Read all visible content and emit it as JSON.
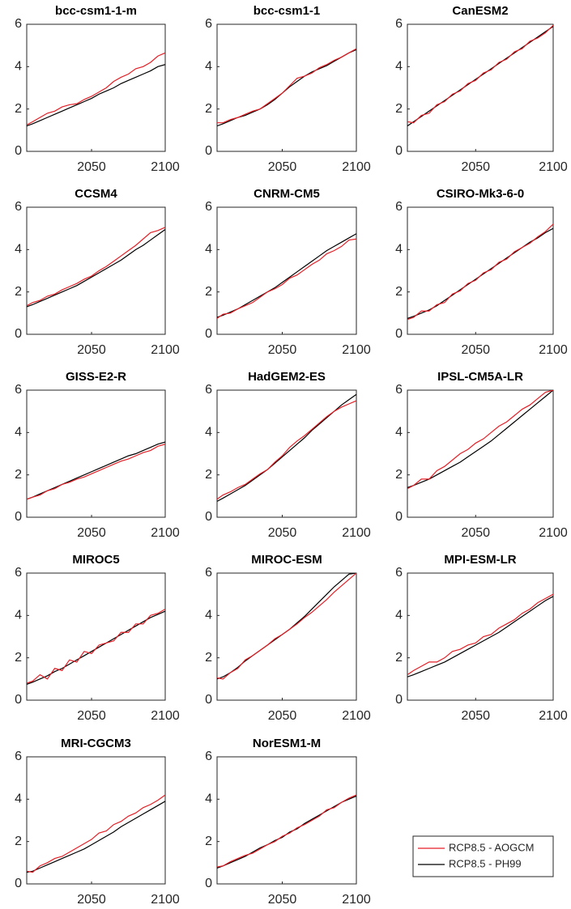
{
  "chart_data": {
    "type": "line",
    "x": [
      2006,
      2010,
      2015,
      2020,
      2025,
      2030,
      2035,
      2040,
      2045,
      2050,
      2055,
      2060,
      2065,
      2070,
      2075,
      2080,
      2085,
      2090,
      2095,
      2100
    ],
    "xlim": [
      2006,
      2100
    ],
    "xticks": [
      2050,
      2100
    ],
    "ylim": [
      0,
      6
    ],
    "yticks": [
      0,
      2,
      4,
      6
    ],
    "legend": [
      {
        "name": "RCP8.5 - AOGCM",
        "color": "#e41f26"
      },
      {
        "name": "RCP8.5 - PH99",
        "color": "#000000"
      }
    ],
    "panels": [
      {
        "title": "bcc-csm1-1-m",
        "series": [
          {
            "values": [
              1.25,
              1.4,
              1.6,
              1.8,
              1.9,
              2.1,
              2.2,
              2.25,
              2.45,
              2.6,
              2.8,
              3.0,
              3.3,
              3.5,
              3.65,
              3.9,
              4.0,
              4.2,
              4.5,
              4.65
            ]
          },
          {
            "values": [
              1.2,
              1.3,
              1.45,
              1.6,
              1.75,
              1.9,
              2.05,
              2.2,
              2.35,
              2.5,
              2.7,
              2.85,
              3.0,
              3.2,
              3.35,
              3.5,
              3.65,
              3.8,
              4.0,
              4.1
            ]
          }
        ]
      },
      {
        "title": "bcc-csm1-1",
        "series": [
          {
            "values": [
              1.35,
              1.35,
              1.5,
              1.6,
              1.75,
              1.9,
              2.0,
              2.25,
              2.5,
              2.75,
              3.1,
              3.45,
              3.55,
              3.7,
              3.95,
              4.1,
              4.3,
              4.45,
              4.65,
              4.85
            ]
          },
          {
            "values": [
              1.2,
              1.3,
              1.45,
              1.6,
              1.7,
              1.85,
              2.0,
              2.2,
              2.45,
              2.75,
              3.05,
              3.3,
              3.55,
              3.75,
              3.9,
              4.05,
              4.25,
              4.45,
              4.65,
              4.8
            ]
          }
        ]
      },
      {
        "title": "CanESM2",
        "series": [
          {
            "values": [
              1.4,
              1.35,
              1.7,
              1.8,
              2.2,
              2.35,
              2.7,
              2.85,
              3.2,
              3.35,
              3.7,
              3.85,
              4.2,
              4.35,
              4.7,
              4.85,
              5.2,
              5.35,
              5.6,
              5.95
            ]
          },
          {
            "values": [
              1.2,
              1.4,
              1.65,
              1.9,
              2.15,
              2.4,
              2.65,
              2.9,
              3.15,
              3.4,
              3.65,
              3.9,
              4.15,
              4.4,
              4.65,
              4.9,
              5.15,
              5.4,
              5.65,
              5.9
            ]
          }
        ]
      },
      {
        "title": "CCSM4",
        "series": [
          {
            "values": [
              1.35,
              1.5,
              1.6,
              1.8,
              1.9,
              2.1,
              2.25,
              2.4,
              2.6,
              2.75,
              3.0,
              3.2,
              3.45,
              3.7,
              3.95,
              4.2,
              4.5,
              4.8,
              4.9,
              5.05
            ]
          },
          {
            "values": [
              1.3,
              1.4,
              1.55,
              1.7,
              1.85,
              2.0,
              2.15,
              2.3,
              2.5,
              2.7,
              2.9,
              3.1,
              3.3,
              3.5,
              3.75,
              4.0,
              4.2,
              4.45,
              4.7,
              4.95
            ]
          }
        ]
      },
      {
        "title": "CNRM-CM5",
        "series": [
          {
            "values": [
              0.75,
              0.95,
              1.0,
              1.2,
              1.35,
              1.5,
              1.75,
              2.0,
              2.15,
              2.35,
              2.65,
              2.8,
              3.05,
              3.3,
              3.5,
              3.8,
              3.95,
              4.15,
              4.45,
              4.5
            ]
          },
          {
            "values": [
              0.8,
              0.9,
              1.05,
              1.2,
              1.4,
              1.6,
              1.8,
              2.0,
              2.2,
              2.45,
              2.7,
              2.95,
              3.2,
              3.45,
              3.7,
              3.95,
              4.15,
              4.35,
              4.55,
              4.75
            ]
          }
        ]
      },
      {
        "title": "CSIRO-Mk3-6-0",
        "series": [
          {
            "values": [
              0.7,
              0.8,
              1.1,
              1.1,
              1.4,
              1.5,
              1.9,
              2.05,
              2.4,
              2.55,
              2.9,
              3.05,
              3.4,
              3.55,
              3.9,
              4.1,
              4.3,
              4.6,
              4.85,
              5.2
            ]
          },
          {
            "values": [
              0.75,
              0.85,
              1.0,
              1.15,
              1.35,
              1.6,
              1.85,
              2.1,
              2.35,
              2.6,
              2.85,
              3.1,
              3.35,
              3.6,
              3.85,
              4.1,
              4.35,
              4.55,
              4.8,
              5.0
            ]
          }
        ]
      },
      {
        "title": "GISS-E2-R",
        "series": [
          {
            "values": [
              0.85,
              0.95,
              1.05,
              1.25,
              1.35,
              1.55,
              1.65,
              1.8,
              1.9,
              2.05,
              2.2,
              2.35,
              2.5,
              2.65,
              2.75,
              2.9,
              3.05,
              3.15,
              3.35,
              3.45
            ]
          },
          {
            "values": [
              0.85,
              0.95,
              1.1,
              1.25,
              1.4,
              1.55,
              1.7,
              1.85,
              2.0,
              2.15,
              2.3,
              2.45,
              2.6,
              2.75,
              2.9,
              3.0,
              3.15,
              3.3,
              3.45,
              3.55
            ]
          }
        ]
      },
      {
        "title": "HadGEM2-ES",
        "series": [
          {
            "values": [
              0.85,
              1.05,
              1.2,
              1.4,
              1.55,
              1.8,
              2.05,
              2.25,
              2.6,
              2.9,
              3.3,
              3.6,
              3.85,
              4.15,
              4.45,
              4.75,
              5.0,
              5.2,
              5.35,
              5.5
            ]
          },
          {
            "values": [
              0.75,
              0.9,
              1.1,
              1.3,
              1.5,
              1.75,
              2.0,
              2.25,
              2.55,
              2.85,
              3.15,
              3.45,
              3.75,
              4.1,
              4.4,
              4.7,
              5.0,
              5.3,
              5.55,
              5.8
            ]
          }
        ]
      },
      {
        "title": "IPSL-CM5A-LR",
        "series": [
          {
            "values": [
              1.35,
              1.5,
              1.8,
              1.8,
              2.2,
              2.4,
              2.7,
              3.0,
              3.2,
              3.5,
              3.7,
              4.0,
              4.3,
              4.5,
              4.8,
              5.1,
              5.3,
              5.6,
              5.9,
              6.0
            ]
          },
          {
            "values": [
              1.4,
              1.5,
              1.65,
              1.8,
              2.0,
              2.2,
              2.4,
              2.6,
              2.85,
              3.1,
              3.35,
              3.6,
              3.9,
              4.2,
              4.5,
              4.8,
              5.1,
              5.4,
              5.7,
              6.0
            ]
          }
        ]
      },
      {
        "title": "MIROC5",
        "series": [
          {
            "values": [
              0.8,
              0.9,
              1.2,
              1.0,
              1.5,
              1.4,
              1.9,
              1.8,
              2.3,
              2.2,
              2.6,
              2.7,
              2.8,
              3.2,
              3.2,
              3.6,
              3.6,
              4.0,
              4.1,
              4.3
            ]
          },
          {
            "values": [
              0.75,
              0.85,
              1.0,
              1.15,
              1.35,
              1.5,
              1.7,
              1.9,
              2.1,
              2.3,
              2.5,
              2.7,
              2.9,
              3.1,
              3.3,
              3.5,
              3.7,
              3.9,
              4.05,
              4.2
            ]
          }
        ]
      },
      {
        "title": "MIROC-ESM",
        "series": [
          {
            "values": [
              1.05,
              1.0,
              1.3,
              1.5,
              1.9,
              2.1,
              2.35,
              2.6,
              2.9,
              3.1,
              3.35,
              3.6,
              3.9,
              4.15,
              4.45,
              4.75,
              5.1,
              5.4,
              5.7,
              6.0
            ]
          },
          {
            "values": [
              1.0,
              1.1,
              1.3,
              1.55,
              1.85,
              2.1,
              2.35,
              2.6,
              2.85,
              3.1,
              3.35,
              3.65,
              3.95,
              4.3,
              4.65,
              5.0,
              5.35,
              5.65,
              5.95,
              6.0
            ]
          }
        ]
      },
      {
        "title": "MPI-ESM-LR",
        "series": [
          {
            "values": [
              1.2,
              1.4,
              1.6,
              1.8,
              1.8,
              2.0,
              2.3,
              2.4,
              2.6,
              2.7,
              3.0,
              3.1,
              3.4,
              3.6,
              3.8,
              4.1,
              4.3,
              4.6,
              4.8,
              5.0
            ]
          },
          {
            "values": [
              1.1,
              1.2,
              1.35,
              1.5,
              1.65,
              1.8,
              2.0,
              2.2,
              2.4,
              2.6,
              2.8,
              3.0,
              3.2,
              3.45,
              3.7,
              3.95,
              4.2,
              4.45,
              4.7,
              4.9
            ]
          }
        ]
      },
      {
        "title": "MRI-CGCM3",
        "series": [
          {
            "values": [
              0.6,
              0.55,
              0.85,
              1.0,
              1.2,
              1.3,
              1.5,
              1.7,
              1.9,
              2.1,
              2.4,
              2.5,
              2.8,
              2.95,
              3.2,
              3.35,
              3.6,
              3.75,
              3.95,
              4.2
            ]
          },
          {
            "values": [
              0.55,
              0.6,
              0.75,
              0.9,
              1.05,
              1.2,
              1.35,
              1.5,
              1.65,
              1.85,
              2.05,
              2.25,
              2.45,
              2.7,
              2.9,
              3.1,
              3.3,
              3.5,
              3.7,
              3.9
            ]
          }
        ]
      },
      {
        "title": "NorESM1-M",
        "series": [
          {
            "values": [
              0.8,
              0.85,
              1.05,
              1.2,
              1.35,
              1.45,
              1.65,
              1.85,
              2.0,
              2.25,
              2.4,
              2.65,
              2.8,
              3.0,
              3.2,
              3.5,
              3.6,
              3.85,
              4.05,
              4.2
            ]
          },
          {
            "values": [
              0.75,
              0.85,
              1.0,
              1.15,
              1.3,
              1.5,
              1.7,
              1.85,
              2.05,
              2.2,
              2.45,
              2.6,
              2.85,
              3.05,
              3.25,
              3.45,
              3.65,
              3.85,
              4.0,
              4.15
            ]
          }
        ]
      }
    ]
  }
}
